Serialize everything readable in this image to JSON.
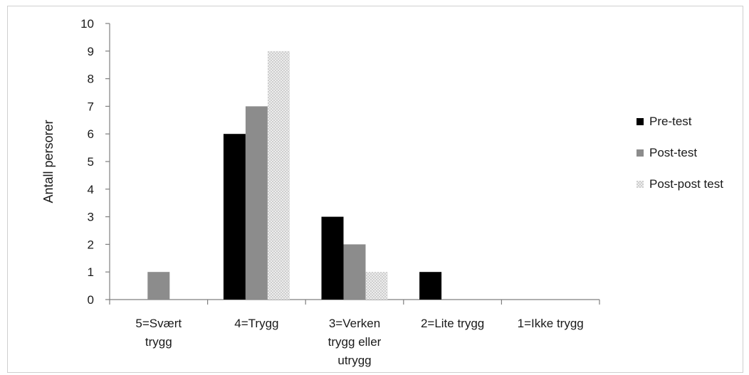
{
  "chart_data": {
    "type": "bar",
    "ylabel": "Antall persorer",
    "xlabel": "",
    "title": "",
    "ylim": [
      0,
      10
    ],
    "yticks": [
      0,
      1,
      2,
      3,
      4,
      5,
      6,
      7,
      8,
      9,
      10
    ],
    "categories": [
      [
        "5=Svært",
        "trygg"
      ],
      [
        "4=Trygg"
      ],
      [
        "3=Verken",
        "trygg eller",
        "utrygg"
      ],
      [
        "2=Lite trygg"
      ],
      [
        "1=Ikke trygg"
      ]
    ],
    "series": [
      {
        "name": "Pre-test",
        "values": [
          0,
          6,
          3,
          1,
          0
        ],
        "color": "#000000"
      },
      {
        "name": "Post-test",
        "values": [
          1,
          7,
          2,
          0,
          0
        ],
        "color": "#8c8c8c"
      },
      {
        "name": "Post-post test",
        "values": [
          0,
          9,
          1,
          0,
          0
        ],
        "color": "#e3e3e3"
      }
    ],
    "legend_position": "right",
    "grid": false
  }
}
